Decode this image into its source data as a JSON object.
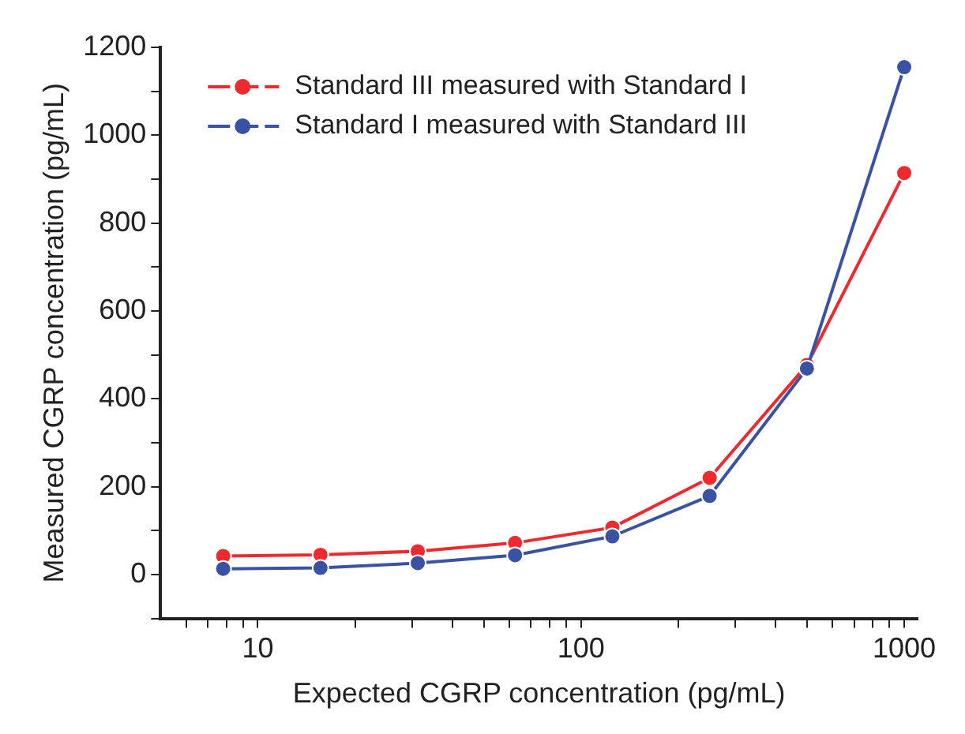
{
  "chart_data": {
    "type": "line",
    "xlabel": "Expected CGRP concentration (pg/mL)",
    "ylabel": "Measured CGRP concentration (pg/mL)",
    "x": [
      7.8125,
      15.625,
      31.25,
      62.5,
      125,
      250,
      500,
      1000
    ],
    "series": [
      {
        "name": "Standard III measured with Standard I",
        "color": "#ee2a2f",
        "values": [
          42,
          45,
          53,
          72,
          107,
          220,
          477,
          914
        ]
      },
      {
        "name": "Standard I measured with Standard III",
        "color": "#3a52a4",
        "values": [
          13,
          15,
          26,
          44,
          87,
          179,
          469,
          1155
        ]
      }
    ],
    "log": "x",
    "xlim": [
      5,
      1100
    ],
    "xticks": [
      {
        "value": 6,
        "label": null
      },
      {
        "value": 7,
        "label": null
      },
      {
        "value": 8,
        "label": null
      },
      {
        "value": 9,
        "label": null
      },
      10,
      {
        "value": 20,
        "label": null
      },
      {
        "value": 30,
        "label": null
      },
      {
        "value": 40,
        "label": null
      },
      {
        "value": 50,
        "label": null
      },
      {
        "value": 60,
        "label": null
      },
      {
        "value": 70,
        "label": null
      },
      {
        "value": 80,
        "label": null
      },
      {
        "value": 90,
        "label": null
      },
      100,
      {
        "value": 200,
        "label": null
      },
      {
        "value": 300,
        "label": null
      },
      {
        "value": 400,
        "label": null
      },
      {
        "value": 500,
        "label": null
      },
      {
        "value": 600,
        "label": null
      },
      {
        "value": 700,
        "label": null
      },
      {
        "value": 800,
        "label": null
      },
      {
        "value": 900,
        "label": null
      },
      1000
    ],
    "ylim": [
      -100,
      1200
    ],
    "yticks": [
      {
        "value": -100,
        "label": null
      },
      0,
      {
        "value": 100,
        "label": null
      },
      200,
      {
        "value": 300,
        "label": null
      },
      400,
      {
        "value": 500,
        "label": null
      },
      600,
      {
        "value": 700,
        "label": null
      },
      800,
      {
        "value": 900,
        "label": null
      },
      1000,
      {
        "value": 1100,
        "label": null
      },
      1200
    ],
    "grid": false,
    "legend": "top left",
    "marker": "circle",
    "line_style": "solid"
  }
}
